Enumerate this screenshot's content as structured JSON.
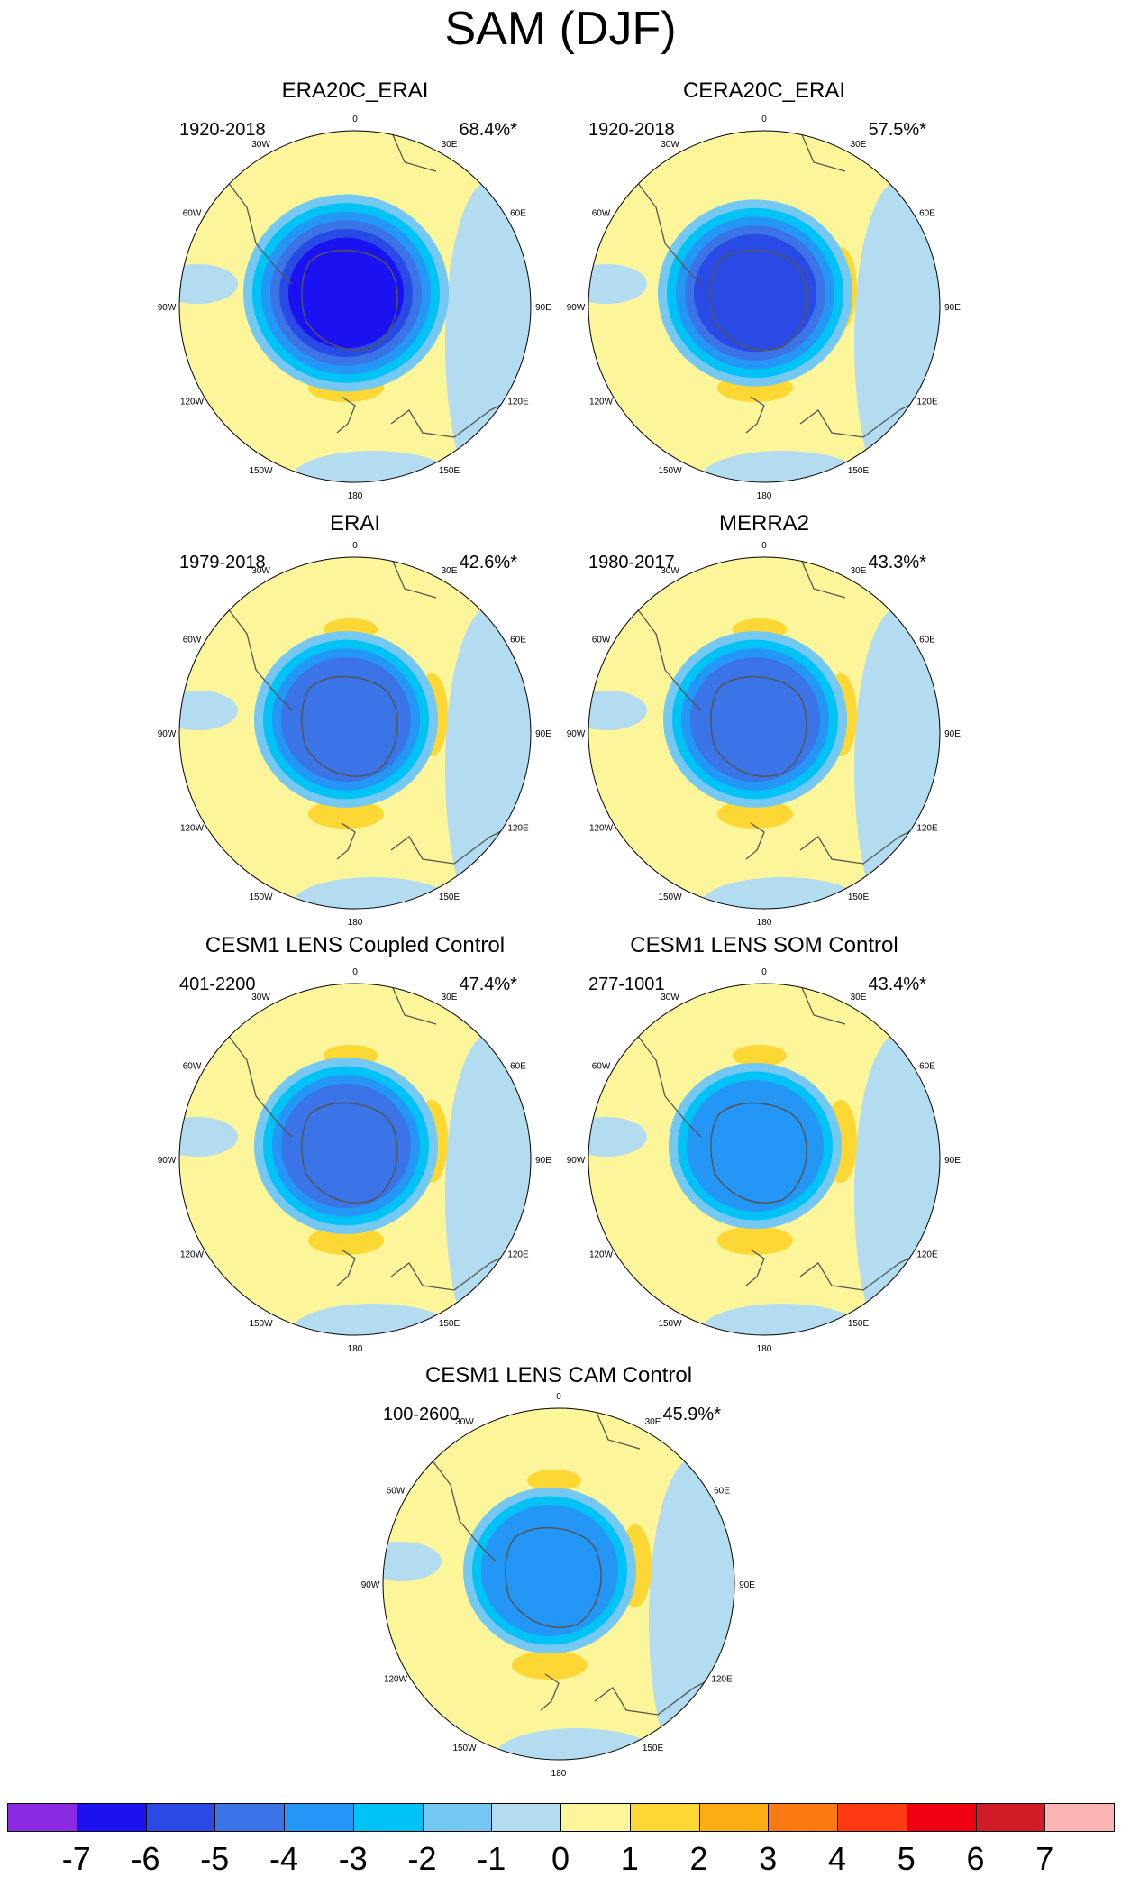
{
  "title": "SAM (DJF)",
  "longitude_labels": [
    "0",
    "30E",
    "60E",
    "90E",
    "120E",
    "150E",
    "180",
    "150W",
    "120W",
    "90W",
    "60W",
    "30W"
  ],
  "panels": [
    {
      "title": "ERA20C_ERAI",
      "period": "1920-2018",
      "variance": "68.4%*"
    },
    {
      "title": "CERA20C_ERAI",
      "period": "1920-2018",
      "variance": "57.5%*"
    },
    {
      "title": "ERAI",
      "period": "1979-2018",
      "variance": "42.6%*"
    },
    {
      "title": "MERRA2",
      "period": "1980-2017",
      "variance": "43.3%*"
    },
    {
      "title": "CESM1 LENS Coupled Control",
      "period": "401-2200",
      "variance": "47.4%*"
    },
    {
      "title": "CESM1 LENS SOM Control",
      "period": "277-1001",
      "variance": "43.4%*"
    },
    {
      "title": "CESM1 LENS CAM Control",
      "period": "100-2600",
      "variance": "45.9%*"
    }
  ],
  "colorbar": {
    "labels": [
      "-7",
      "-6",
      "-5",
      "-4",
      "-3",
      "-2",
      "-1",
      "0",
      "1",
      "2",
      "3",
      "4",
      "5",
      "6",
      "7"
    ],
    "colors": [
      "#8a2be2",
      "#1a12f0",
      "#2a4ae6",
      "#3b74e6",
      "#2496f5",
      "#00c2f5",
      "#74c8f2",
      "#b4dcf0",
      "#fdf59a",
      "#fdd835",
      "#fdac12",
      "#fd7a12",
      "#fd3a12",
      "#f00010",
      "#d01c24",
      "#fbb4b4"
    ]
  }
}
